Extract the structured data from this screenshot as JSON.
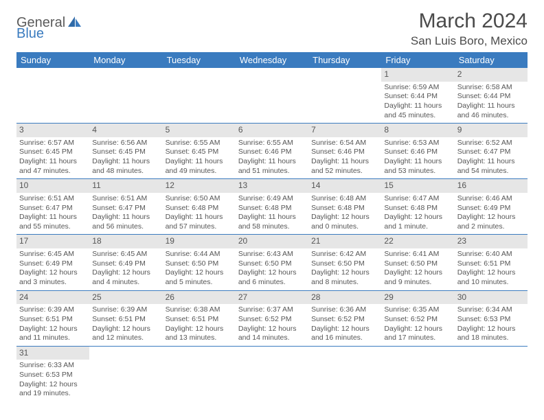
{
  "logo": {
    "part1": "General",
    "part2": "Blue"
  },
  "title": "March 2024",
  "location": "San Luis Boro, Mexico",
  "colors": {
    "header_bg": "#3a7bbf",
    "header_text": "#ffffff",
    "daynum_bg": "#e6e6e6",
    "row_border": "#3a7bbf",
    "body_text": "#555555"
  },
  "weekdays": [
    "Sunday",
    "Monday",
    "Tuesday",
    "Wednesday",
    "Thursday",
    "Friday",
    "Saturday"
  ],
  "weeks": [
    [
      null,
      null,
      null,
      null,
      null,
      {
        "n": "1",
        "sr": "Sunrise: 6:59 AM",
        "ss": "Sunset: 6:44 PM",
        "d1": "Daylight: 11 hours",
        "d2": "and 45 minutes."
      },
      {
        "n": "2",
        "sr": "Sunrise: 6:58 AM",
        "ss": "Sunset: 6:44 PM",
        "d1": "Daylight: 11 hours",
        "d2": "and 46 minutes."
      }
    ],
    [
      {
        "n": "3",
        "sr": "Sunrise: 6:57 AM",
        "ss": "Sunset: 6:45 PM",
        "d1": "Daylight: 11 hours",
        "d2": "and 47 minutes."
      },
      {
        "n": "4",
        "sr": "Sunrise: 6:56 AM",
        "ss": "Sunset: 6:45 PM",
        "d1": "Daylight: 11 hours",
        "d2": "and 48 minutes."
      },
      {
        "n": "5",
        "sr": "Sunrise: 6:55 AM",
        "ss": "Sunset: 6:45 PM",
        "d1": "Daylight: 11 hours",
        "d2": "and 49 minutes."
      },
      {
        "n": "6",
        "sr": "Sunrise: 6:55 AM",
        "ss": "Sunset: 6:46 PM",
        "d1": "Daylight: 11 hours",
        "d2": "and 51 minutes."
      },
      {
        "n": "7",
        "sr": "Sunrise: 6:54 AM",
        "ss": "Sunset: 6:46 PM",
        "d1": "Daylight: 11 hours",
        "d2": "and 52 minutes."
      },
      {
        "n": "8",
        "sr": "Sunrise: 6:53 AM",
        "ss": "Sunset: 6:46 PM",
        "d1": "Daylight: 11 hours",
        "d2": "and 53 minutes."
      },
      {
        "n": "9",
        "sr": "Sunrise: 6:52 AM",
        "ss": "Sunset: 6:47 PM",
        "d1": "Daylight: 11 hours",
        "d2": "and 54 minutes."
      }
    ],
    [
      {
        "n": "10",
        "sr": "Sunrise: 6:51 AM",
        "ss": "Sunset: 6:47 PM",
        "d1": "Daylight: 11 hours",
        "d2": "and 55 minutes."
      },
      {
        "n": "11",
        "sr": "Sunrise: 6:51 AM",
        "ss": "Sunset: 6:47 PM",
        "d1": "Daylight: 11 hours",
        "d2": "and 56 minutes."
      },
      {
        "n": "12",
        "sr": "Sunrise: 6:50 AM",
        "ss": "Sunset: 6:48 PM",
        "d1": "Daylight: 11 hours",
        "d2": "and 57 minutes."
      },
      {
        "n": "13",
        "sr": "Sunrise: 6:49 AM",
        "ss": "Sunset: 6:48 PM",
        "d1": "Daylight: 11 hours",
        "d2": "and 58 minutes."
      },
      {
        "n": "14",
        "sr": "Sunrise: 6:48 AM",
        "ss": "Sunset: 6:48 PM",
        "d1": "Daylight: 12 hours",
        "d2": "and 0 minutes."
      },
      {
        "n": "15",
        "sr": "Sunrise: 6:47 AM",
        "ss": "Sunset: 6:48 PM",
        "d1": "Daylight: 12 hours",
        "d2": "and 1 minute."
      },
      {
        "n": "16",
        "sr": "Sunrise: 6:46 AM",
        "ss": "Sunset: 6:49 PM",
        "d1": "Daylight: 12 hours",
        "d2": "and 2 minutes."
      }
    ],
    [
      {
        "n": "17",
        "sr": "Sunrise: 6:45 AM",
        "ss": "Sunset: 6:49 PM",
        "d1": "Daylight: 12 hours",
        "d2": "and 3 minutes."
      },
      {
        "n": "18",
        "sr": "Sunrise: 6:45 AM",
        "ss": "Sunset: 6:49 PM",
        "d1": "Daylight: 12 hours",
        "d2": "and 4 minutes."
      },
      {
        "n": "19",
        "sr": "Sunrise: 6:44 AM",
        "ss": "Sunset: 6:50 PM",
        "d1": "Daylight: 12 hours",
        "d2": "and 5 minutes."
      },
      {
        "n": "20",
        "sr": "Sunrise: 6:43 AM",
        "ss": "Sunset: 6:50 PM",
        "d1": "Daylight: 12 hours",
        "d2": "and 6 minutes."
      },
      {
        "n": "21",
        "sr": "Sunrise: 6:42 AM",
        "ss": "Sunset: 6:50 PM",
        "d1": "Daylight: 12 hours",
        "d2": "and 8 minutes."
      },
      {
        "n": "22",
        "sr": "Sunrise: 6:41 AM",
        "ss": "Sunset: 6:50 PM",
        "d1": "Daylight: 12 hours",
        "d2": "and 9 minutes."
      },
      {
        "n": "23",
        "sr": "Sunrise: 6:40 AM",
        "ss": "Sunset: 6:51 PM",
        "d1": "Daylight: 12 hours",
        "d2": "and 10 minutes."
      }
    ],
    [
      {
        "n": "24",
        "sr": "Sunrise: 6:39 AM",
        "ss": "Sunset: 6:51 PM",
        "d1": "Daylight: 12 hours",
        "d2": "and 11 minutes."
      },
      {
        "n": "25",
        "sr": "Sunrise: 6:39 AM",
        "ss": "Sunset: 6:51 PM",
        "d1": "Daylight: 12 hours",
        "d2": "and 12 minutes."
      },
      {
        "n": "26",
        "sr": "Sunrise: 6:38 AM",
        "ss": "Sunset: 6:51 PM",
        "d1": "Daylight: 12 hours",
        "d2": "and 13 minutes."
      },
      {
        "n": "27",
        "sr": "Sunrise: 6:37 AM",
        "ss": "Sunset: 6:52 PM",
        "d1": "Daylight: 12 hours",
        "d2": "and 14 minutes."
      },
      {
        "n": "28",
        "sr": "Sunrise: 6:36 AM",
        "ss": "Sunset: 6:52 PM",
        "d1": "Daylight: 12 hours",
        "d2": "and 16 minutes."
      },
      {
        "n": "29",
        "sr": "Sunrise: 6:35 AM",
        "ss": "Sunset: 6:52 PM",
        "d1": "Daylight: 12 hours",
        "d2": "and 17 minutes."
      },
      {
        "n": "30",
        "sr": "Sunrise: 6:34 AM",
        "ss": "Sunset: 6:53 PM",
        "d1": "Daylight: 12 hours",
        "d2": "and 18 minutes."
      }
    ],
    [
      {
        "n": "31",
        "sr": "Sunrise: 6:33 AM",
        "ss": "Sunset: 6:53 PM",
        "d1": "Daylight: 12 hours",
        "d2": "and 19 minutes."
      },
      null,
      null,
      null,
      null,
      null,
      null
    ]
  ]
}
